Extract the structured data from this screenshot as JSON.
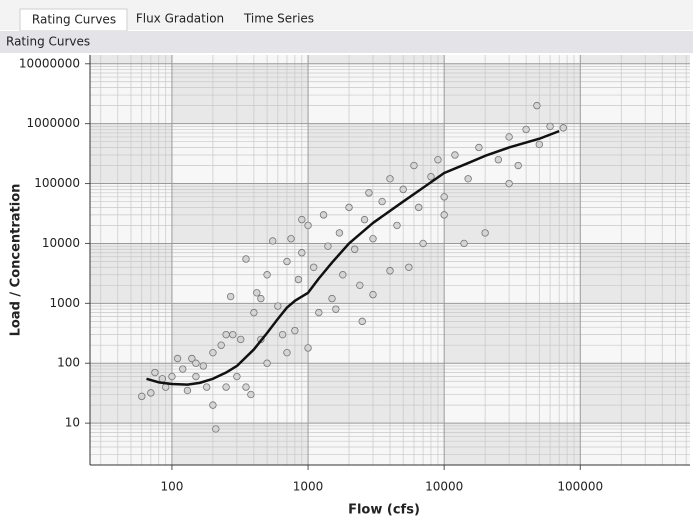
{
  "tabs": [
    "Rating Curves",
    "Flux Gradation",
    "Time Series"
  ],
  "panel_title": "Rating Curves",
  "chart_data": {
    "type": "scatter",
    "xlabel": "Flow (cfs)",
    "ylabel": "Load / Concentration",
    "xscale": "log",
    "yscale": "log",
    "grid": true,
    "xlim": [
      25,
      640000
    ],
    "ylim": [
      2,
      14000000
    ],
    "xticks": [
      100,
      1000,
      10000,
      100000
    ],
    "yticks": [
      10,
      100,
      1000,
      10000,
      100000,
      1000000,
      10000000
    ],
    "points": {
      "color": "#d4d4d4",
      "edgecolor": "#777777",
      "x": [
        60,
        70,
        75,
        85,
        90,
        100,
        110,
        120,
        130,
        140,
        150,
        170,
        180,
        200,
        200,
        210,
        230,
        250,
        270,
        280,
        300,
        320,
        350,
        380,
        400,
        420,
        450,
        500,
        500,
        550,
        600,
        650,
        700,
        750,
        800,
        850,
        900,
        1000,
        1000,
        1100,
        1200,
        1300,
        1400,
        1500,
        1700,
        1800,
        2000,
        2200,
        2500,
        2600,
        2800,
        3000,
        3000,
        3500,
        4000,
        4000,
        4500,
        5000,
        5500,
        6000,
        6500,
        7000,
        8000,
        9000,
        10000,
        10000,
        12000,
        14000,
        15000,
        18000,
        20000,
        25000,
        30000,
        35000,
        40000,
        48000,
        50000,
        60000,
        75000,
        30000,
        1600,
        2400,
        700,
        450,
        350,
        250,
        150,
        900
      ],
      "y": [
        28,
        32,
        70,
        55,
        40,
        60,
        120,
        80,
        35,
        120,
        60,
        90,
        40,
        20,
        150,
        8,
        200,
        40,
        1300,
        300,
        60,
        250,
        5500,
        30,
        700,
        1500,
        250,
        100,
        3000,
        11000,
        900,
        300,
        5000,
        12000,
        350,
        2500,
        7000,
        180,
        20000,
        4000,
        700,
        30000,
        9000,
        1200,
        15000,
        3000,
        40000,
        8000,
        500,
        25000,
        70000,
        1400,
        12000,
        50000,
        3500,
        120000,
        20000,
        80000,
        4000,
        200000,
        40000,
        10000,
        130000,
        250000,
        60000,
        30000,
        300000,
        10000,
        120000,
        400000,
        15000,
        250000,
        600000,
        200000,
        800000,
        2000000,
        450000,
        900000,
        850000,
        100000,
        800,
        2000,
        150,
        1200,
        40,
        300,
        100,
        25000
      ]
    },
    "curve": {
      "color": "#111111",
      "x": [
        65,
        80,
        100,
        130,
        160,
        200,
        250,
        300,
        400,
        500,
        600,
        700,
        800,
        1000,
        1200,
        1500,
        2000,
        3000,
        5000,
        7000,
        10000,
        15000,
        20000,
        30000,
        50000,
        70000
      ],
      "y": [
        55,
        48,
        45,
        44,
        47,
        55,
        70,
        90,
        170,
        320,
        550,
        850,
        1100,
        1500,
        2600,
        4800,
        10000,
        22000,
        50000,
        85000,
        150000,
        220000,
        290000,
        400000,
        560000,
        750000
      ]
    }
  }
}
